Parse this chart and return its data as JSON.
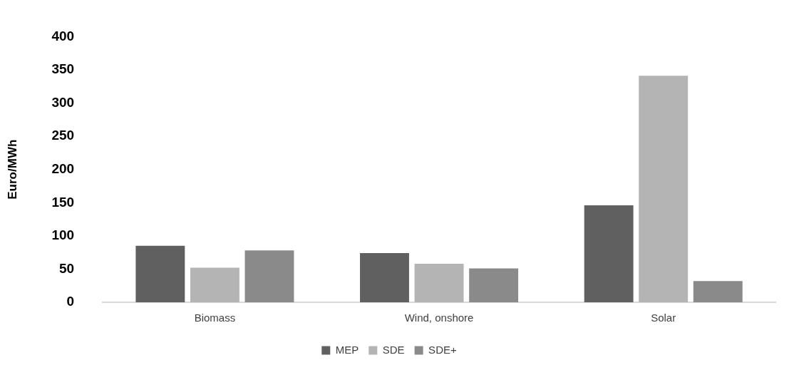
{
  "chart_data": {
    "type": "bar",
    "ylabel": "Euro/MWh",
    "categories": [
      "Biomass",
      "Wind, onshore",
      "Solar"
    ],
    "series": [
      {
        "name": "MEP",
        "color": "#606060",
        "values": [
          85,
          74,
          146
        ]
      },
      {
        "name": "SDE",
        "color": "#b4b4b4",
        "values": [
          52,
          58,
          341
        ]
      },
      {
        "name": "SDE+",
        "color": "#8a8a8a",
        "values": [
          78,
          51,
          32
        ]
      }
    ],
    "ylim": [
      0,
      400
    ],
    "yticks": [
      0,
      50,
      100,
      150,
      200,
      250,
      300,
      350,
      400
    ],
    "grid": false,
    "legend": "bottom"
  }
}
